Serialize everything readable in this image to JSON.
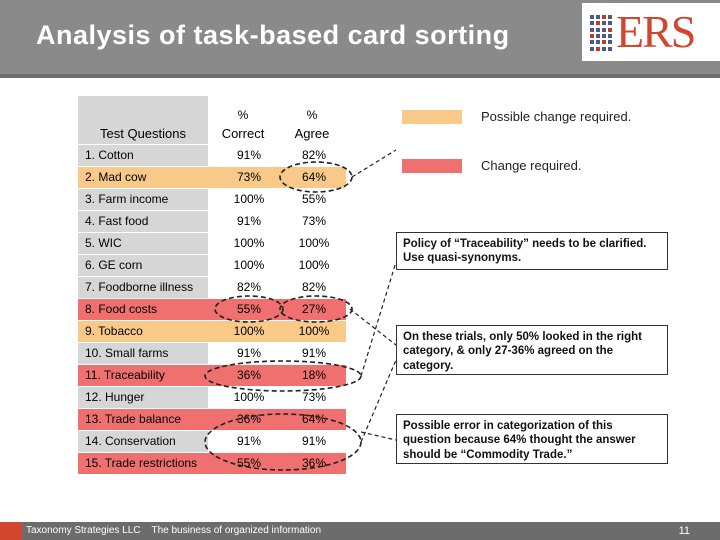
{
  "header": {
    "title": "Analysis of task-based card sorting"
  },
  "logo": {
    "text": "ERS"
  },
  "table": {
    "col_question": "Test Questions",
    "col_correct_pct": "%",
    "col_correct": "Correct",
    "col_agree_pct": "%",
    "col_agree": "Agree",
    "rows": [
      {
        "q": "1. Cotton",
        "correct": "91%",
        "agree": "82%",
        "status": "none"
      },
      {
        "q": "2. Mad cow",
        "correct": "73%",
        "agree": "64%",
        "status": "possible"
      },
      {
        "q": "3. Farm income",
        "correct": "100%",
        "agree": "55%",
        "status": "none"
      },
      {
        "q": "4. Fast food",
        "correct": "91%",
        "agree": "73%",
        "status": "none"
      },
      {
        "q": "5. WIC",
        "correct": "100%",
        "agree": "100%",
        "status": "none"
      },
      {
        "q": "6. GE corn",
        "correct": "100%",
        "agree": "100%",
        "status": "none"
      },
      {
        "q": "7. Foodborne illness",
        "correct": "82%",
        "agree": "82%",
        "status": "none"
      },
      {
        "q": "8. Food costs",
        "correct": "55%",
        "agree": "27%",
        "status": "change"
      },
      {
        "q": "9. Tobacco",
        "correct": "100%",
        "agree": "100%",
        "status": "possible"
      },
      {
        "q": "10. Small farms",
        "correct": "91%",
        "agree": "91%",
        "status": "none"
      },
      {
        "q": "11. Traceability",
        "correct": "36%",
        "agree": "18%",
        "status": "change"
      },
      {
        "q": "12. Hunger",
        "correct": "100%",
        "agree": "73%",
        "status": "none"
      },
      {
        "q": "13. Trade balance",
        "correct": "36%",
        "agree": "64%",
        "status": "change"
      },
      {
        "q": "14. Conservation",
        "correct": "91%",
        "agree": "91%",
        "status": "none"
      },
      {
        "q": "15. Trade restrictions",
        "correct": "55%",
        "agree": "36%",
        "status": "change"
      }
    ]
  },
  "legend": {
    "possible": {
      "label": "Possible change required.",
      "color": "#f9c98a"
    },
    "change": {
      "label": "Change required.",
      "color": "#f07070"
    }
  },
  "notes": {
    "traceability_policy": "Policy of “Traceability” needs to be clarified. Use quasi-synonyms.",
    "trials": "On these trials, only 50% looked in the right category, & only 27-36% agreed on the category.",
    "categorization": "Possible error in categorization of this question because 64% thought the answer should be “Commodity Trade.”"
  },
  "footer": {
    "company": "Taxonomy Strategies LLC",
    "tagline": "The business of organized information",
    "page": "11"
  }
}
